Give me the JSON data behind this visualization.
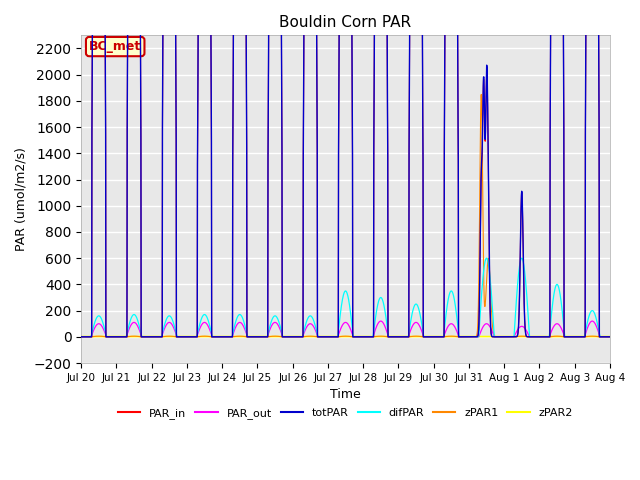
{
  "title": "Bouldin Corn PAR",
  "ylabel": "PAR (umol/m2/s)",
  "xlabel": "Time",
  "ylim": [
    -200,
    2300
  ],
  "yticks": [
    -200,
    0,
    200,
    400,
    600,
    800,
    1000,
    1200,
    1400,
    1600,
    1800,
    2000,
    2200
  ],
  "n_days": 15,
  "legend_items": [
    {
      "label": "PAR_in",
      "color": "#ff0000"
    },
    {
      "label": "PAR_out",
      "color": "#ff00ff"
    },
    {
      "label": "totPAR",
      "color": "#0000cc"
    },
    {
      "label": "difPAR",
      "color": "#00ffff"
    },
    {
      "label": "zPAR1",
      "color": "#ff8800"
    },
    {
      "label": "zPAR2",
      "color": "#ffff00"
    }
  ],
  "annotation_text": "BC_met",
  "annotation_bg": "#ffffcc",
  "annotation_fg": "#cc0000",
  "plot_bg": "#e8e8e8"
}
